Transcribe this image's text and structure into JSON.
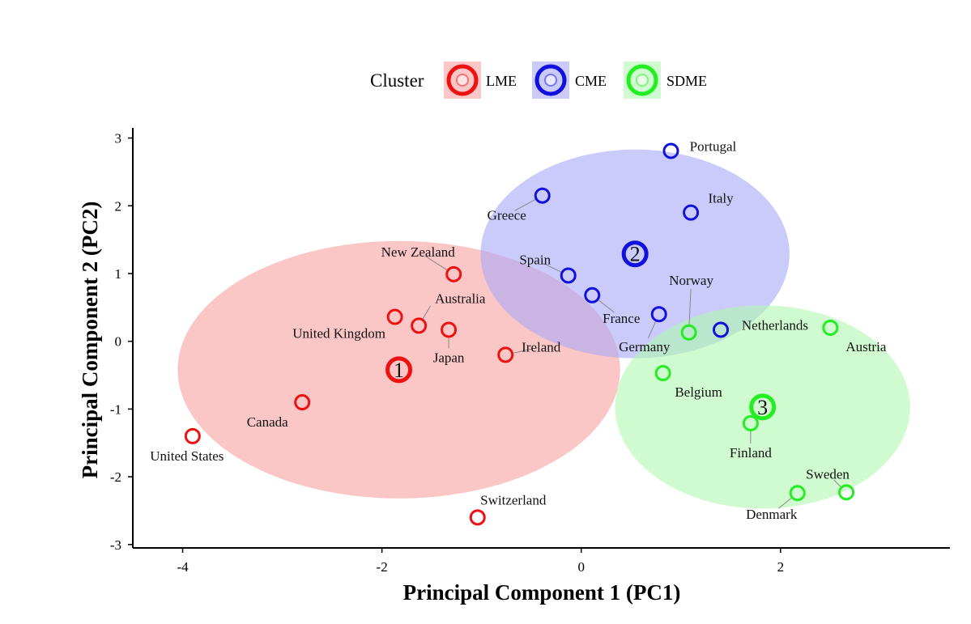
{
  "chart_data": {
    "type": "scatter",
    "xlabel": "Principal Component 1 (PC1)",
    "ylabel": "Principal Component 2 (PC2)",
    "xlim": [
      -4.5,
      3.7
    ],
    "ylim": [
      -3.05,
      3.15
    ],
    "xticks": [
      -4,
      -2,
      0,
      2
    ],
    "yticks": [
      -3,
      -2,
      -1,
      0,
      1,
      2,
      3
    ],
    "xtick_labels": [
      "-4",
      "-2",
      "0",
      "2"
    ],
    "ytick_labels": [
      "-3",
      "-2",
      "-1",
      "0",
      "1",
      "2",
      "3"
    ],
    "grid": false,
    "legend": {
      "title": "Cluster",
      "position": "top",
      "entries": [
        {
          "name": "LME",
          "color": "#ee1111"
        },
        {
          "name": "CME",
          "color": "#1111dd"
        },
        {
          "name": "SDME",
          "color": "#22ee22"
        }
      ]
    },
    "clusters": [
      {
        "name": "LME",
        "color": "#ee1111",
        "fill": "#f8a0a0",
        "centroid": {
          "label": "1",
          "x": -1.83,
          "y": -0.42
        },
        "ellipse": {
          "cx": -1.83,
          "cy": -0.42,
          "rx": 2.22,
          "ry": 1.9
        },
        "points": [
          {
            "name": "New Zealand",
            "x": -1.28,
            "y": 0.99
          },
          {
            "name": "Australia",
            "x": -1.63,
            "y": 0.23
          },
          {
            "name": "United Kingdom",
            "x": -1.87,
            "y": 0.36
          },
          {
            "name": "Japan",
            "x": -1.33,
            "y": 0.17
          },
          {
            "name": "Ireland",
            "x": -0.76,
            "y": -0.2
          },
          {
            "name": "Canada",
            "x": -2.8,
            "y": -0.9
          },
          {
            "name": "United States",
            "x": -3.9,
            "y": -1.4
          },
          {
            "name": "Switzerland",
            "x": -1.04,
            "y": -2.6
          }
        ]
      },
      {
        "name": "CME",
        "color": "#1111dd",
        "fill": "#a8a8f8",
        "centroid": {
          "label": "2",
          "x": 0.54,
          "y": 1.29
        },
        "ellipse": {
          "cx": 0.54,
          "cy": 1.29,
          "rx": 1.55,
          "ry": 1.54
        },
        "points": [
          {
            "name": "Portugal",
            "x": 0.9,
            "y": 2.81
          },
          {
            "name": "Italy",
            "x": 1.1,
            "y": 1.9
          },
          {
            "name": "Greece",
            "x": -0.39,
            "y": 2.15
          },
          {
            "name": "Spain",
            "x": -0.13,
            "y": 0.97
          },
          {
            "name": "France",
            "x": 0.11,
            "y": 0.68
          },
          {
            "name": "Germany",
            "x": 0.78,
            "y": 0.4
          },
          {
            "name": "Netherlands",
            "x": 1.4,
            "y": 0.17
          }
        ]
      },
      {
        "name": "SDME",
        "color": "#22ee22",
        "fill": "#b0f8b0",
        "centroid": {
          "label": "3",
          "x": 1.82,
          "y": -0.97
        },
        "ellipse": {
          "cx": 1.82,
          "cy": -0.97,
          "rx": 1.48,
          "ry": 1.5
        },
        "points": [
          {
            "name": "Norway",
            "x": 1.08,
            "y": 0.13
          },
          {
            "name": "Austria",
            "x": 2.5,
            "y": 0.2
          },
          {
            "name": "Belgium",
            "x": 0.82,
            "y": -0.47
          },
          {
            "name": "Finland",
            "x": 1.7,
            "y": -1.21
          },
          {
            "name": "Sweden",
            "x": 2.66,
            "y": -2.23
          },
          {
            "name": "Denmark",
            "x": 2.17,
            "y": -2.24
          }
        ]
      }
    ]
  }
}
